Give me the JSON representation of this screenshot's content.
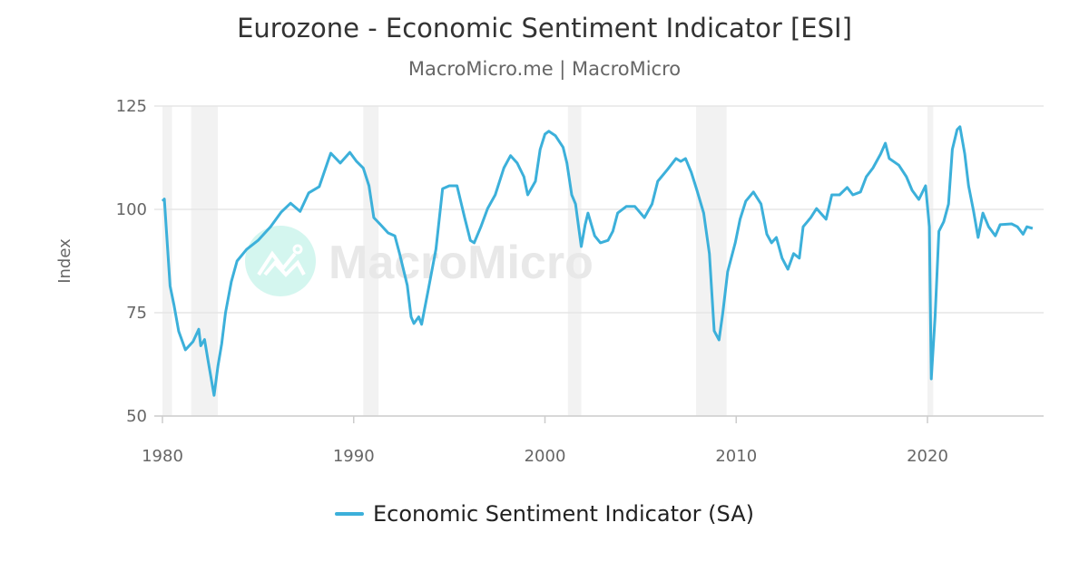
{
  "title": "Eurozone - Economic Sentiment Indicator [ESI]",
  "subtitle": "MacroMicro.me | MacroMicro",
  "watermark": "MacroMicro",
  "chart_data": {
    "type": "line",
    "title": "Eurozone - Economic Sentiment Indicator [ESI]",
    "ylabel": "Index",
    "xlabel": "",
    "xlim": [
      1980,
      2026
    ],
    "ylim": [
      50,
      125
    ],
    "xticks": [
      "1980",
      "1990",
      "2000",
      "2010",
      "2020"
    ],
    "yticks": [
      "50",
      "75",
      "100",
      "125"
    ],
    "grid": "horizontal",
    "legend_position": "bottom",
    "recession_shading": [
      [
        1980.0,
        1980.5
      ],
      [
        1981.5,
        1982.9
      ],
      [
        1990.5,
        1991.3
      ],
      [
        2001.2,
        2001.9
      ],
      [
        2007.9,
        2009.5
      ],
      [
        2020.0,
        2020.3
      ]
    ],
    "colors": {
      "line": "#3CB0DA",
      "shading": "#F2F2F2",
      "grid": "#E6E6E6"
    },
    "series": [
      {
        "name": "Economic Sentiment Indicator (SA)",
        "points": [
          [
            1980.0,
            102
          ],
          [
            1980.1,
            102.5
          ],
          [
            1980.4,
            81.5
          ],
          [
            1980.6,
            77
          ],
          [
            1980.85,
            70.5
          ],
          [
            1981.2,
            66
          ],
          [
            1981.6,
            68
          ],
          [
            1981.9,
            71
          ],
          [
            1982.0,
            67
          ],
          [
            1982.2,
            68.5
          ],
          [
            1982.4,
            63
          ],
          [
            1982.7,
            55
          ],
          [
            1982.9,
            62
          ],
          [
            1983.1,
            67.5
          ],
          [
            1983.3,
            75
          ],
          [
            1983.6,
            82.5
          ],
          [
            1983.9,
            87.5
          ],
          [
            1984.4,
            90.3
          ],
          [
            1985.0,
            92.5
          ],
          [
            1985.65,
            95.8
          ],
          [
            1986.2,
            99.3
          ],
          [
            1986.7,
            101.5
          ],
          [
            1987.2,
            99.5
          ],
          [
            1987.65,
            104
          ],
          [
            1988.2,
            105.5
          ],
          [
            1988.7,
            112.3
          ],
          [
            1988.8,
            113.6
          ],
          [
            1989.3,
            111.2
          ],
          [
            1989.8,
            113.8
          ],
          [
            1990.15,
            111.6
          ],
          [
            1990.5,
            110
          ],
          [
            1990.8,
            105.7
          ],
          [
            1991.05,
            98
          ],
          [
            1991.4,
            96.3
          ],
          [
            1991.8,
            94.3
          ],
          [
            1992.15,
            93.6
          ],
          [
            1992.4,
            89.3
          ],
          [
            1992.8,
            81.6
          ],
          [
            1993.0,
            74
          ],
          [
            1993.15,
            72.4
          ],
          [
            1993.4,
            74
          ],
          [
            1993.55,
            72.2
          ],
          [
            1993.9,
            80.5
          ],
          [
            1994.3,
            90.4
          ],
          [
            1994.65,
            105
          ],
          [
            1995.0,
            105.7
          ],
          [
            1995.4,
            105.7
          ],
          [
            1995.8,
            98
          ],
          [
            1996.1,
            92.5
          ],
          [
            1996.3,
            91.9
          ],
          [
            1996.65,
            95.8
          ],
          [
            1997.0,
            100.2
          ],
          [
            1997.4,
            103.5
          ],
          [
            1997.85,
            110
          ],
          [
            1998.2,
            113
          ],
          [
            1998.55,
            111.2
          ],
          [
            1998.9,
            107.9
          ],
          [
            1999.1,
            103.5
          ],
          [
            1999.5,
            106.8
          ],
          [
            1999.75,
            114.5
          ],
          [
            2000.0,
            118.2
          ],
          [
            2000.2,
            118.9
          ],
          [
            2000.55,
            117.8
          ],
          [
            2000.95,
            115
          ],
          [
            2001.15,
            111.2
          ],
          [
            2001.4,
            103.5
          ],
          [
            2001.6,
            101.3
          ],
          [
            2001.9,
            91
          ],
          [
            2002.1,
            96.3
          ],
          [
            2002.25,
            99.1
          ],
          [
            2002.6,
            93.6
          ],
          [
            2002.9,
            91.9
          ],
          [
            2003.3,
            92.5
          ],
          [
            2003.55,
            94.7
          ],
          [
            2003.8,
            99.1
          ],
          [
            2004.25,
            100.7
          ],
          [
            2004.7,
            100.7
          ],
          [
            2005.2,
            98
          ],
          [
            2005.6,
            101.3
          ],
          [
            2005.9,
            106.8
          ],
          [
            2006.4,
            109.6
          ],
          [
            2006.85,
            112.3
          ],
          [
            2007.1,
            111.6
          ],
          [
            2007.35,
            112.3
          ],
          [
            2007.65,
            109
          ],
          [
            2007.95,
            104.6
          ],
          [
            2008.3,
            99.1
          ],
          [
            2008.6,
            89.3
          ],
          [
            2008.85,
            70.6
          ],
          [
            2009.1,
            68.4
          ],
          [
            2009.3,
            75
          ],
          [
            2009.55,
            84.9
          ],
          [
            2009.95,
            91.9
          ],
          [
            2010.2,
            97.6
          ],
          [
            2010.5,
            102
          ],
          [
            2010.9,
            104.2
          ],
          [
            2011.3,
            101.3
          ],
          [
            2011.6,
            94
          ],
          [
            2011.85,
            91.9
          ],
          [
            2012.1,
            93.2
          ],
          [
            2012.4,
            88.2
          ],
          [
            2012.7,
            85.5
          ],
          [
            2013.0,
            89.3
          ],
          [
            2013.3,
            88.2
          ],
          [
            2013.5,
            95.8
          ],
          [
            2013.9,
            98
          ],
          [
            2014.2,
            100.2
          ],
          [
            2014.7,
            97.6
          ],
          [
            2015.0,
            103.5
          ],
          [
            2015.4,
            103.5
          ],
          [
            2015.8,
            105.3
          ],
          [
            2016.1,
            103.5
          ],
          [
            2016.5,
            104.2
          ],
          [
            2016.8,
            107.9
          ],
          [
            2017.15,
            110
          ],
          [
            2017.55,
            113.4
          ],
          [
            2017.8,
            116
          ],
          [
            2018.0,
            112.3
          ],
          [
            2018.5,
            110.7
          ],
          [
            2018.9,
            107.9
          ],
          [
            2019.2,
            104.6
          ],
          [
            2019.55,
            102.4
          ],
          [
            2019.9,
            105.7
          ],
          [
            2020.1,
            95.8
          ],
          [
            2020.2,
            59
          ],
          [
            2020.4,
            74
          ],
          [
            2020.6,
            94.7
          ],
          [
            2020.85,
            97
          ],
          [
            2021.1,
            101.3
          ],
          [
            2021.3,
            114.5
          ],
          [
            2021.55,
            119.3
          ],
          [
            2021.7,
            120
          ],
          [
            2021.95,
            113.4
          ],
          [
            2022.15,
            105.7
          ],
          [
            2022.4,
            99.8
          ],
          [
            2022.65,
            93.2
          ],
          [
            2022.9,
            99.1
          ],
          [
            2023.2,
            95.8
          ],
          [
            2023.55,
            93.6
          ],
          [
            2023.8,
            96.3
          ],
          [
            2024.4,
            96.5
          ],
          [
            2024.7,
            95.8
          ],
          [
            2025.0,
            94
          ],
          [
            2025.2,
            95.8
          ],
          [
            2025.5,
            95.4
          ]
        ]
      }
    ]
  }
}
